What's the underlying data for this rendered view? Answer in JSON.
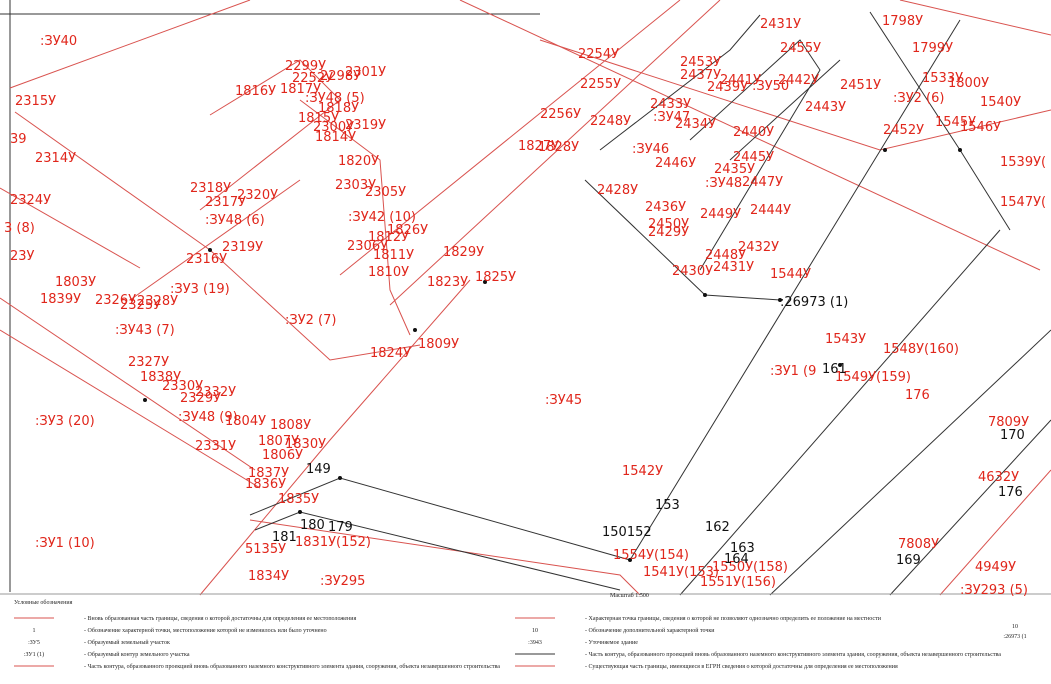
{
  "map": {
    "labels": [
      {
        "text": ":ЗУ40",
        "color": "#e0261b"
      },
      {
        "text": "2315У",
        "color": "#e0261b"
      },
      {
        "text": "39",
        "color": "#e0261b"
      },
      {
        "text": "2314У",
        "color": "#e0261b"
      },
      {
        "text": "2324У",
        "color": "#e0261b"
      },
      {
        "text": "3 (8)",
        "color": "#e0261b"
      },
      {
        "text": "23У",
        "color": "#e0261b"
      },
      {
        "text": "1803У",
        "color": "#e0261b"
      },
      {
        "text": "1839У",
        "color": "#e0261b"
      },
      {
        "text": "2326У",
        "color": "#e0261b"
      },
      {
        "text": "2325У",
        "color": "#e0261b"
      },
      {
        "text": "2328У",
        "color": "#e0261b"
      },
      {
        "text": ":ЗУ3 (19)",
        "color": "#e0261b"
      },
      {
        "text": ":ЗУ43 (7)",
        "color": "#e0261b"
      },
      {
        "text": ":ЗУ2 (7)",
        "color": "#e0261b"
      },
      {
        "text": "2327У",
        "color": "#e0261b"
      },
      {
        "text": "1838У",
        "color": "#e0261b"
      },
      {
        "text": "2330У",
        "color": "#e0261b"
      },
      {
        "text": "2332У",
        "color": "#e0261b"
      },
      {
        "text": "2329У",
        "color": "#e0261b"
      },
      {
        "text": ":ЗУ48 (9)",
        "color": "#e0261b"
      },
      {
        "text": "1804У",
        "color": "#e0261b"
      },
      {
        "text": "1808У",
        "color": "#e0261b"
      },
      {
        "text": "1807У",
        "color": "#e0261b"
      },
      {
        "text": "1830У",
        "color": "#e0261b"
      },
      {
        "text": "1806У",
        "color": "#e0261b"
      },
      {
        "text": ":ЗУ3 (20)",
        "color": "#e0261b"
      },
      {
        "text": "2331У",
        "color": "#e0261b"
      },
      {
        "text": "1837У",
        "color": "#e0261b"
      },
      {
        "text": "1836У",
        "color": "#e0261b"
      },
      {
        "text": "1835У",
        "color": "#e0261b"
      },
      {
        "text": ":ЗУ1 (10)",
        "color": "#e0261b"
      },
      {
        "text": "5135У",
        "color": "#e0261b"
      },
      {
        "text": "1834У",
        "color": "#e0261b"
      },
      {
        "text": "1831У(152)",
        "color": "#e0261b"
      },
      {
        "text": ":ЗУ295",
        "color": "#e0261b"
      },
      {
        "text": "2299У",
        "color": "#e0261b"
      },
      {
        "text": "2252У",
        "color": "#e0261b"
      },
      {
        "text": "2298У",
        "color": "#e0261b"
      },
      {
        "text": "2301У",
        "color": "#e0261b"
      },
      {
        "text": "1816У",
        "color": "#e0261b"
      },
      {
        "text": "1817У",
        "color": "#e0261b"
      },
      {
        "text": ":ЗУ48 (5)",
        "color": "#e0261b"
      },
      {
        "text": "1818У",
        "color": "#e0261b"
      },
      {
        "text": "1815У",
        "color": "#e0261b"
      },
      {
        "text": "2300У",
        "color": "#e0261b"
      },
      {
        "text": "2319У",
        "color": "#e0261b"
      },
      {
        "text": "1814У",
        "color": "#e0261b"
      },
      {
        "text": "1820У",
        "color": "#e0261b"
      },
      {
        "text": "2318У",
        "color": "#e0261b"
      },
      {
        "text": "2317У",
        "color": "#e0261b"
      },
      {
        "text": "2320У",
        "color": "#e0261b"
      },
      {
        "text": ":ЗУ48 (6)",
        "color": "#e0261b"
      },
      {
        "text": "2303У",
        "color": "#e0261b"
      },
      {
        "text": "2305У",
        "color": "#e0261b"
      },
      {
        "text": ":ЗУ42 (10)",
        "color": "#e0261b"
      },
      {
        "text": "1812У",
        "color": "#e0261b"
      },
      {
        "text": "1826У",
        "color": "#e0261b"
      },
      {
        "text": "2306У",
        "color": "#e0261b"
      },
      {
        "text": "1811У",
        "color": "#e0261b"
      },
      {
        "text": "1829У",
        "color": "#e0261b"
      },
      {
        "text": "2319У",
        "color": "#e0261b"
      },
      {
        "text": "2316У",
        "color": "#e0261b"
      },
      {
        "text": "1810У",
        "color": "#e0261b"
      },
      {
        "text": "1823У",
        "color": "#e0261b"
      },
      {
        "text": "1825У",
        "color": "#e0261b"
      },
      {
        "text": "1809У",
        "color": "#e0261b"
      },
      {
        "text": "1824У",
        "color": "#e0261b"
      },
      {
        "text": ":ЗУ45",
        "color": "#e0261b"
      },
      {
        "text": "1827У",
        "color": "#e0261b"
      },
      {
        "text": "1828У",
        "color": "#e0261b"
      },
      {
        "text": "2254У",
        "color": "#e0261b"
      },
      {
        "text": "2255У",
        "color": "#e0261b"
      },
      {
        "text": "2453У",
        "color": "#e0261b"
      },
      {
        "text": "2437У",
        "color": "#e0261b"
      },
      {
        "text": "2431У",
        "color": "#e0261b"
      },
      {
        "text": "2455У",
        "color": "#e0261b"
      },
      {
        "text": "1798У",
        "color": "#e0261b"
      },
      {
        "text": "1799У",
        "color": "#e0261b"
      },
      {
        "text": "2451У",
        "color": "#e0261b"
      },
      {
        "text": "1533У",
        "color": "#e0261b"
      },
      {
        "text": "1800У",
        "color": "#e0261b"
      },
      {
        "text": ":ЗУ2 (6)",
        "color": "#e0261b"
      },
      {
        "text": "1540У",
        "color": "#e0261b"
      },
      {
        "text": "1545У",
        "color": "#e0261b"
      },
      {
        "text": "1546У",
        "color": "#e0261b"
      },
      {
        "text": "2452У",
        "color": "#e0261b"
      },
      {
        "text": "2256У",
        "color": "#e0261b"
      },
      {
        "text": "2248У",
        "color": "#e0261b"
      },
      {
        "text": "2433У",
        "color": "#e0261b"
      },
      {
        "text": ":ЗУ47",
        "color": "#e0261b"
      },
      {
        "text": "2434У",
        "color": "#e0261b"
      },
      {
        "text": "2439У",
        "color": "#e0261b"
      },
      {
        "text": "2441У",
        "color": "#e0261b"
      },
      {
        "text": ":ЗУ50",
        "color": "#e0261b"
      },
      {
        "text": "2442У",
        "color": "#e0261b"
      },
      {
        "text": "2443У",
        "color": "#e0261b"
      },
      {
        "text": "2440У",
        "color": "#e0261b"
      },
      {
        "text": ":ЗУ46",
        "color": "#e0261b"
      },
      {
        "text": "2446У",
        "color": "#e0261b"
      },
      {
        "text": "2445У",
        "color": "#e0261b"
      },
      {
        "text": "2435У",
        "color": "#e0261b"
      },
      {
        "text": ":ЗУ48",
        "color": "#e0261b"
      },
      {
        "text": "2447У",
        "color": "#e0261b"
      },
      {
        "text": "2428У",
        "color": "#e0261b"
      },
      {
        "text": "2436У",
        "color": "#e0261b"
      },
      {
        "text": "2449У",
        "color": "#e0261b"
      },
      {
        "text": "2444У",
        "color": "#e0261b"
      },
      {
        "text": "2450У",
        "color": "#e0261b"
      },
      {
        "text": "2429У",
        "color": "#e0261b"
      },
      {
        "text": "2448У",
        "color": "#e0261b"
      },
      {
        "text": "2432У",
        "color": "#e0261b"
      },
      {
        "text": "2430У",
        "color": "#e0261b"
      },
      {
        "text": "2431У",
        "color": "#e0261b"
      },
      {
        "text": "1544У",
        "color": "#e0261b"
      },
      {
        "text": "1539У(",
        "color": "#e0261b"
      },
      {
        "text": "1547У(",
        "color": "#e0261b"
      },
      {
        "text": "1543У",
        "color": "#e0261b"
      },
      {
        "text": "1548У(160)",
        "color": "#e0261b"
      },
      {
        "text": ":ЗУ1 (9",
        "color": "#e0261b"
      },
      {
        "text": "1549У(159)",
        "color": "#e0261b"
      },
      {
        "text": "176",
        "color": "#e0261b"
      },
      {
        "text": "1542У",
        "color": "#e0261b"
      },
      {
        "text": "1554У(154)",
        "color": "#e0261b"
      },
      {
        "text": "1541У(153)",
        "color": "#e0261b"
      },
      {
        "text": "1550У(158)",
        "color": "#e0261b"
      },
      {
        "text": "1551У(156)",
        "color": "#e0261b"
      },
      {
        "text": "7809У",
        "color": "#e0261b"
      },
      {
        "text": "4632У",
        "color": "#e0261b"
      },
      {
        "text": "7808У",
        "color": "#e0261b"
      },
      {
        "text": "4949У",
        "color": "#e0261b"
      },
      {
        "text": ":ЗУ293 (5)",
        "color": "#e0261b"
      },
      {
        "text": ":26973 (1)",
        "color": "#111111"
      },
      {
        "text": "161",
        "color": "#111111"
      },
      {
        "text": "149",
        "color": "#111111"
      },
      {
        "text": "153",
        "color": "#111111"
      },
      {
        "text": "150152",
        "color": "#111111"
      },
      {
        "text": "162",
        "color": "#111111"
      },
      {
        "text": "163",
        "color": "#111111"
      },
      {
        "text": "164",
        "color": "#111111"
      },
      {
        "text": "180",
        "color": "#111111"
      },
      {
        "text": "179",
        "color": "#111111"
      },
      {
        "text": "181",
        "color": "#111111"
      },
      {
        "text": "170",
        "color": "#111111"
      },
      {
        "text": "176",
        "color": "#111111"
      },
      {
        "text": "169",
        "color": "#111111"
      }
    ]
  },
  "legend": {
    "title": "Условные обозначения",
    "scale": "Масштаб 1:500",
    "left": [
      {
        "symbol": "",
        "text": "- Вновь образованная часть границы, сведения о которой достаточны для определения ее местоположения"
      },
      {
        "symbol": "1",
        "text": "- Обозначение характерной точки, местоположение которой не изменилось или было уточнено"
      },
      {
        "symbol": ":ЗУ5",
        "text": "- Образуемый земельный участок"
      },
      {
        "symbol": ":ЗУ1 (1)",
        "text": "- Образуемый контур земельного участка"
      },
      {
        "symbol": "",
        "text": "- Часть контура, образованного проекцией вновь образованного наземного конструктивного элемента здания, сооружения, объекта незавершенного строительства"
      }
    ],
    "right": [
      {
        "symbol": "",
        "text": "- Характерная точка границы, сведения о которой не позволяют однозначно определить ее положение на местности"
      },
      {
        "symbol": "10",
        "text": "- Обозначение дополнительной характерной точки"
      },
      {
        "symbol": ":3943",
        "text": "- Уточняемое здание"
      },
      {
        "symbol": "",
        "text": "- Часть контура, образованного проекцией вновь образованного наземного конструктивного элемента здания, сооружения, объекта незавершенного строительства"
      },
      {
        "symbol": "",
        "text": "- Существующая часть границы, имеющиеся в ЕГРН сведения о которой достаточны для определения ее местоположения"
      }
    ],
    "far_right": [
      "10",
      ":26973 (1"
    ]
  }
}
